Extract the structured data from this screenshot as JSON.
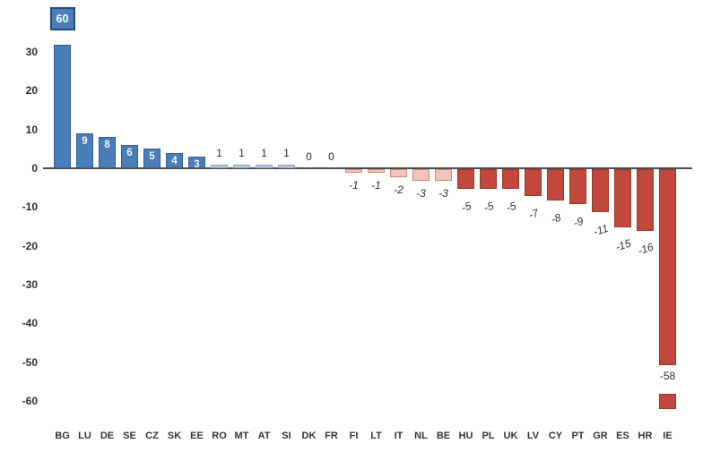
{
  "chart_data": {
    "type": "bar",
    "title": "",
    "xlabel": "",
    "ylabel": "",
    "categories": [
      "BG",
      "LU",
      "DE",
      "SE",
      "CZ",
      "SK",
      "EE",
      "RO",
      "MT",
      "AT",
      "SI",
      "DK",
      "FR",
      "FI",
      "LT",
      "IT",
      "NL",
      "BE",
      "HU",
      "PL",
      "UK",
      "LV",
      "CY",
      "PT",
      "GR",
      "ES",
      "HR",
      "IE"
    ],
    "values": [
      60,
      9,
      8,
      6,
      5,
      4,
      3,
      1,
      1,
      1,
      1,
      0,
      0,
      -1,
      -1,
      -2,
      -3,
      -3,
      -5,
      -5,
      -5,
      -7,
      -8,
      -9,
      -11,
      -15,
      -16,
      -58
    ],
    "data_labels": [
      "60",
      "9",
      "8",
      "6",
      "5",
      "4",
      "3",
      "1",
      "1",
      "1",
      "1",
      "0",
      "0",
      "-1",
      "-1",
      "-2",
      "-3",
      "-3",
      "-5",
      "-5",
      "-5",
      "-7",
      "-8",
      "-9",
      "-11",
      "-15",
      "-16",
      "-58"
    ],
    "yticks": [
      30,
      20,
      10,
      0,
      -10,
      -20,
      -30,
      -40,
      -50,
      -60
    ],
    "ylim": [
      -60,
      35
    ],
    "grid": false,
    "legend": null,
    "clipped_bars": [
      {
        "category": "BG",
        "value": 60,
        "bar_drawn_to": 32,
        "label_style": "boxed label at top"
      },
      {
        "category": "IE",
        "value": -58,
        "bar_drawn_to": -50,
        "label_style": "label in gap, small segment near -60"
      }
    ],
    "palette": {
      "positive_large": "#4a7ebb",
      "positive_large_border": "#2f5d94",
      "positive_small": "#b4cbe2",
      "positive_small_border": "#8aa4bd",
      "negative_small": "#f0c4b8",
      "negative_small_border": "#c88a77",
      "negative_large": "#c2483c",
      "negative_large_border": "#96382d",
      "label_box_fill": "#4a7ebb",
      "label_box_border": "#1f4e79",
      "axis_line": "#4d4d4d",
      "text": "#2e2e2e",
      "inside_label_text": "#ffffff"
    }
  }
}
